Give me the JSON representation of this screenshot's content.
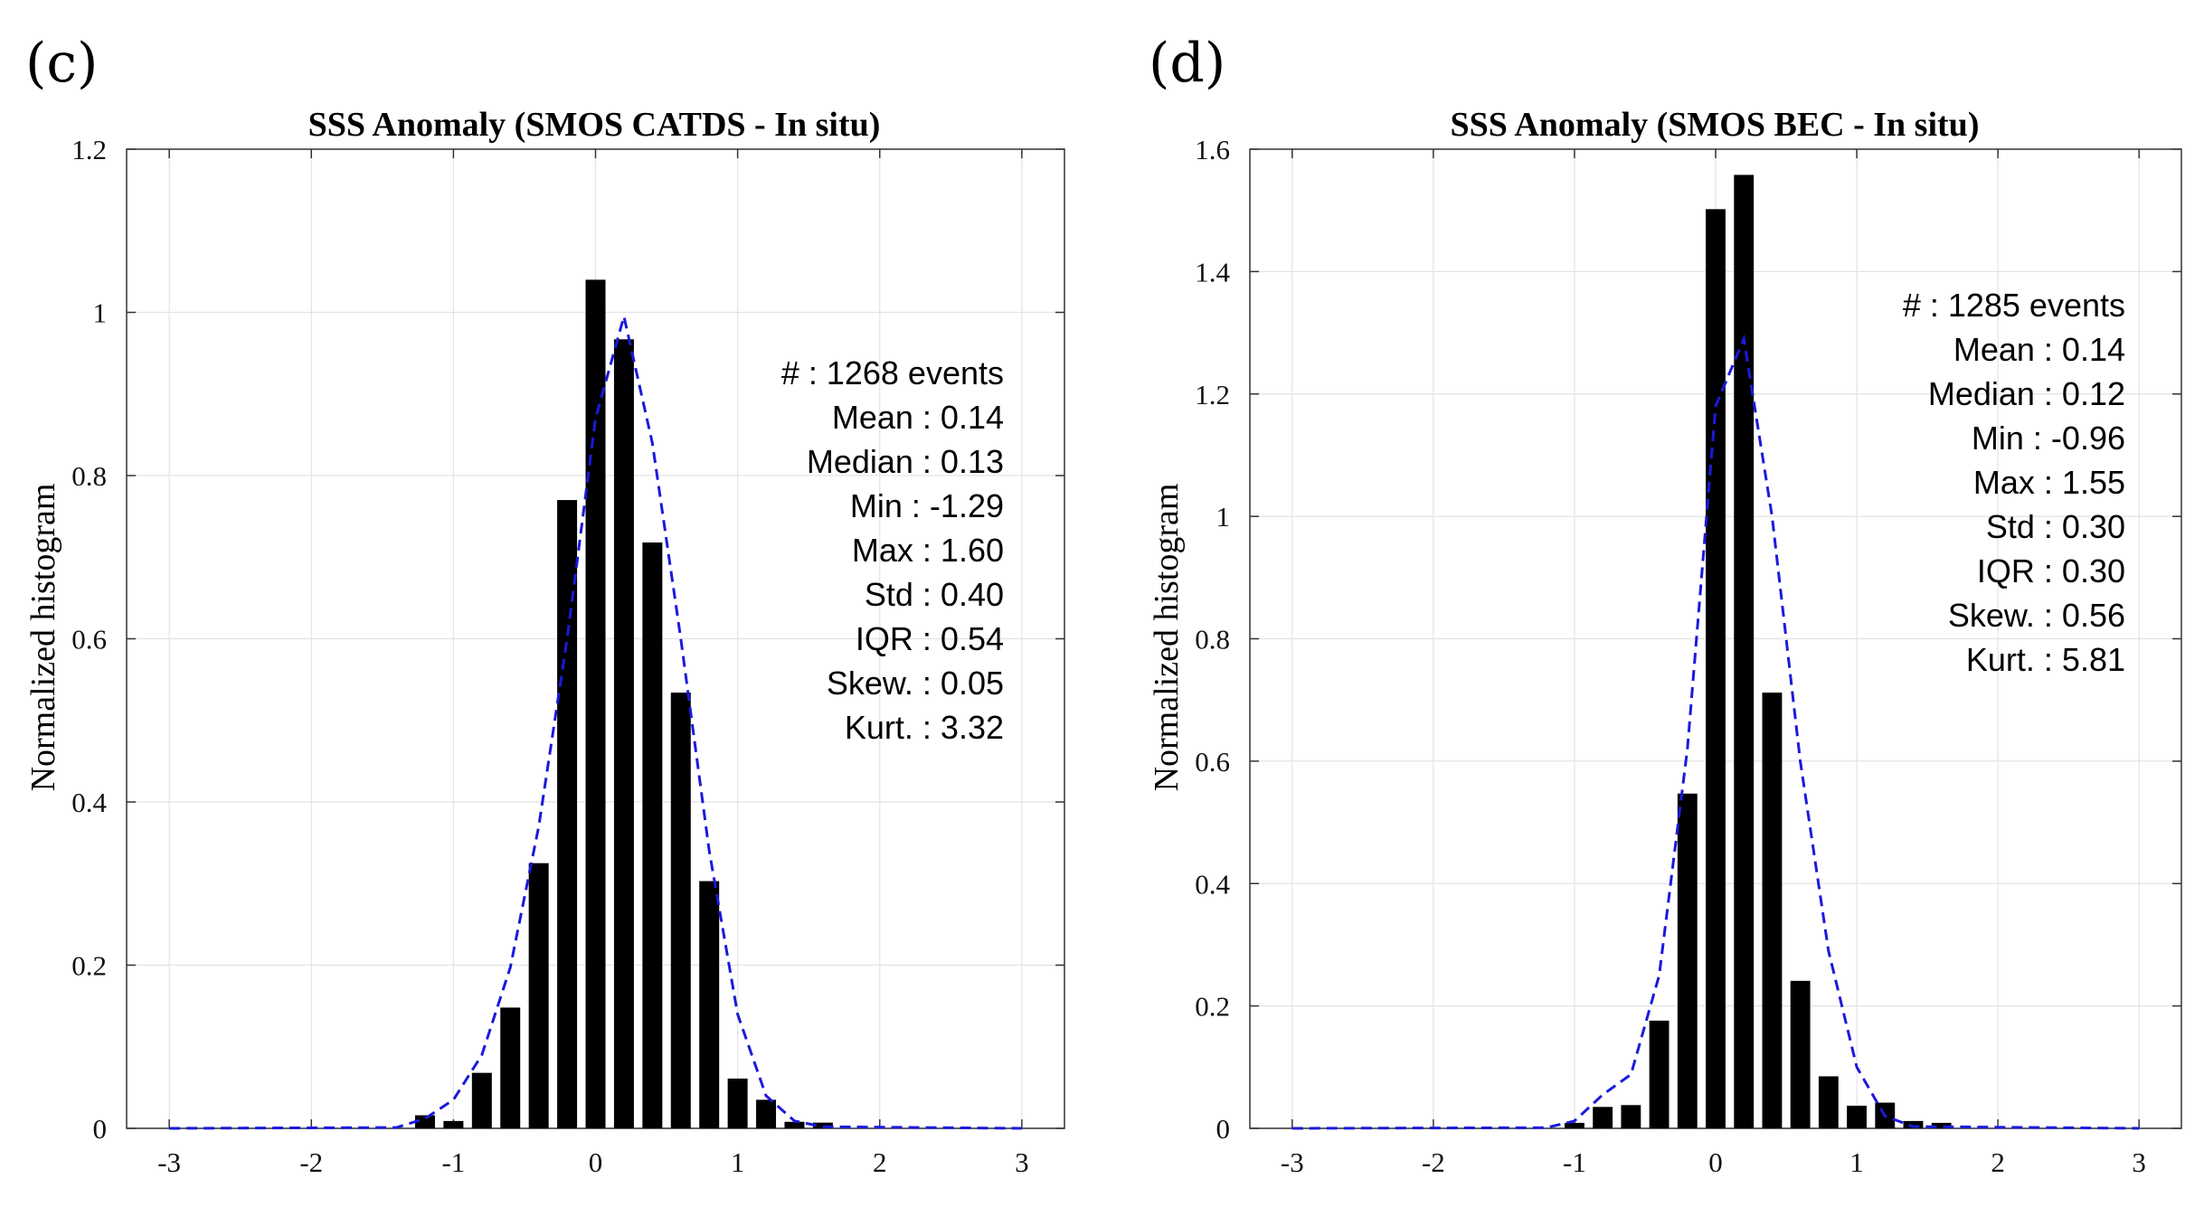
{
  "chart_data": [
    {
      "panel": "(c)",
      "type": "bar",
      "title": "SSS Anomaly (SMOS CATDS - In situ)",
      "xlabel": "",
      "ylabel": "Normalized histogram",
      "xlim": [
        -3.3,
        3.3
      ],
      "ylim": [
        0,
        1.2
      ],
      "xticks": [
        "-3",
        "-2",
        "-1",
        "0",
        "1",
        "2",
        "3"
      ],
      "yticks": [
        "0",
        "0.2",
        "0.4",
        "0.6",
        "0.8",
        "1",
        "1.2"
      ],
      "grid": true,
      "bar_width": 0.14,
      "bars": {
        "x": [
          -1.2,
          -1.0,
          -0.8,
          -0.6,
          -0.4,
          -0.2,
          0.0,
          0.2,
          0.4,
          0.6,
          0.8,
          1.0,
          1.2,
          1.4,
          1.6
        ],
        "y": [
          0.016,
          0.009,
          0.068,
          0.148,
          0.325,
          0.77,
          1.04,
          0.967,
          0.718,
          0.534,
          0.303,
          0.061,
          0.035,
          0.008,
          0.007
        ]
      },
      "fit_curve": {
        "style": "dashed",
        "color": "#1a1adc",
        "x": [
          -3.0,
          -1.4,
          -1.2,
          -1.0,
          -0.8,
          -0.6,
          -0.4,
          -0.2,
          0.0,
          0.2,
          0.4,
          0.6,
          0.8,
          1.0,
          1.2,
          1.4,
          1.6,
          3.0
        ],
        "y": [
          0.0,
          0.001,
          0.012,
          0.035,
          0.09,
          0.197,
          0.37,
          0.6,
          0.87,
          0.995,
          0.84,
          0.6,
          0.34,
          0.14,
          0.04,
          0.009,
          0.002,
          0.0
        ]
      },
      "stats": [
        "#  : 1268 events",
        "Mean : 0.14",
        "Median : 0.13",
        "Min : -1.29",
        "Max : 1.60",
        "Std : 0.40",
        "IQR : 0.54",
        "Skew. : 0.05",
        "Kurt. : 3.32"
      ]
    },
    {
      "panel": "(d)",
      "type": "bar",
      "title": "SSS Anomaly (SMOS BEC - In situ)",
      "xlabel": "",
      "ylabel": "Normalized histogram",
      "xlim": [
        -3.3,
        3.3
      ],
      "ylim": [
        0,
        1.6
      ],
      "xticks": [
        "-3",
        "-2",
        "-1",
        "0",
        "1",
        "2",
        "3"
      ],
      "yticks": [
        "0",
        "0.2",
        "0.4",
        "0.6",
        "0.8",
        "1",
        "1.2",
        "1.4",
        "1.6"
      ],
      "grid": true,
      "bar_width": 0.14,
      "bars": {
        "x": [
          -1.0,
          -0.8,
          -0.6,
          -0.4,
          -0.2,
          0.0,
          0.2,
          0.4,
          0.6,
          0.8,
          1.0,
          1.2,
          1.4,
          1.6
        ],
        "y": [
          0.009,
          0.035,
          0.038,
          0.176,
          0.547,
          1.502,
          1.558,
          0.712,
          0.241,
          0.085,
          0.037,
          0.042,
          0.012,
          0.009
        ]
      },
      "fit_curve": {
        "style": "dashed",
        "color": "#1a1adc",
        "x": [
          -3.0,
          -1.2,
          -1.0,
          -0.8,
          -0.6,
          -0.4,
          -0.2,
          0.0,
          0.2,
          0.4,
          0.6,
          0.8,
          1.0,
          1.2,
          1.4,
          3.0
        ],
        "y": [
          0.0,
          0.001,
          0.012,
          0.055,
          0.088,
          0.25,
          0.62,
          1.18,
          1.29,
          1.0,
          0.6,
          0.29,
          0.1,
          0.02,
          0.003,
          0.0
        ]
      },
      "stats": [
        "#  : 1285 events",
        "Mean : 0.14",
        "Median : 0.12",
        "Min : -0.96",
        "Max : 1.55",
        "Std : 0.30",
        "IQR : 0.30",
        "Skew. : 0.56",
        "Kurt. : 5.81"
      ]
    }
  ]
}
